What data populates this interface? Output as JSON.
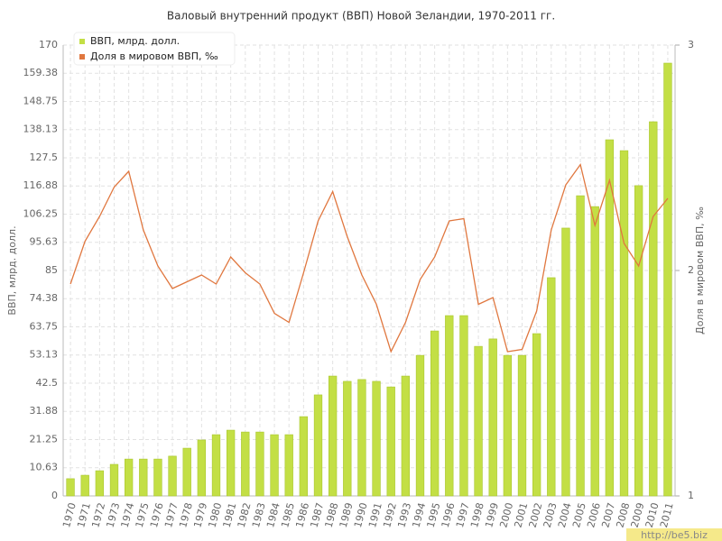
{
  "chart_data": {
    "type": "bar_line",
    "title": "Валовый внутренний продукт (ВВП) Новой Зеландии, 1970-2011 гг.",
    "ylabel": "ВВП, млрд. долл.",
    "y2label": "Доля в мировом ВВП, ‰",
    "watermark": "http://be5.biz",
    "categories": [
      "1970",
      "1971",
      "1972",
      "1973",
      "1974",
      "1975",
      "1976",
      "1977",
      "1978",
      "1979",
      "1980",
      "1981",
      "1982",
      "1983",
      "1984",
      "1985",
      "1986",
      "1987",
      "1988",
      "1989",
      "1990",
      "1991",
      "1992",
      "1993",
      "1994",
      "1995",
      "1996",
      "1997",
      "1998",
      "1999",
      "2000",
      "2001",
      "2002",
      "2003",
      "2004",
      "2005",
      "2006",
      "2007",
      "2008",
      "2009",
      "2010",
      "2011"
    ],
    "series": [
      {
        "name": "ВВП, млрд. долл.",
        "color": "#c3df45",
        "kind": "bar",
        "values": [
          6.5,
          7.8,
          9.5,
          11.9,
          13.9,
          13.9,
          13.9,
          15,
          18,
          21.1,
          23.1,
          24.8,
          24.1,
          24.1,
          23.1,
          23.1,
          29.9,
          38.1,
          45.2,
          43.2,
          43.9,
          43.2,
          41.1,
          45.2,
          53,
          62.2,
          68,
          68,
          56.4,
          59.2,
          53,
          53,
          61.2,
          82.3,
          101,
          113.2,
          109.1,
          134.3,
          130.2,
          117,
          141.1,
          163.2
        ]
      },
      {
        "name": "Доля в мировом ВВП, ‰",
        "color": "#e0773f",
        "kind": "line",
        "axis": "y2",
        "values": [
          1.94,
          2.13,
          2.24,
          2.37,
          2.44,
          2.18,
          2.02,
          1.92,
          1.95,
          1.98,
          1.94,
          2.06,
          1.99,
          1.94,
          1.81,
          1.77,
          1.99,
          2.22,
          2.35,
          2.15,
          1.98,
          1.85,
          1.64,
          1.77,
          1.96,
          2.06,
          2.22,
          2.23,
          1.85,
          1.88,
          1.64,
          1.65,
          1.82,
          2.18,
          2.38,
          2.47,
          2.2,
          2.4,
          2.12,
          2.02,
          2.24,
          2.32
        ]
      }
    ],
    "ylim": [
      0,
      170
    ],
    "yticks": [
      0,
      10.63,
      21.25,
      31.88,
      42.5,
      53.13,
      63.75,
      74.38,
      85,
      95.63,
      106.25,
      116.88,
      127.5,
      138.13,
      148.75,
      159.38,
      170
    ],
    "y2lim": [
      1,
      3
    ],
    "y2ticks": [
      1,
      2,
      3
    ],
    "grid": true,
    "legend": "top-left"
  }
}
